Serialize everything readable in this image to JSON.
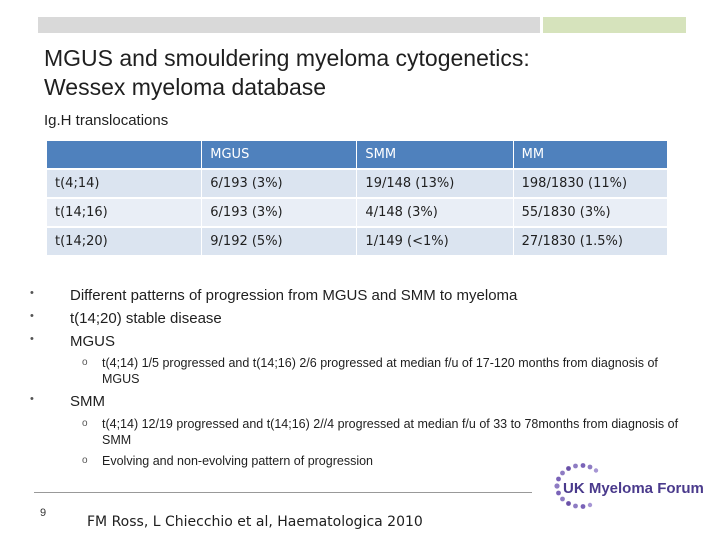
{
  "slide": {
    "title_line1": "MGUS and smouldering myeloma cytogenetics:",
    "title_line2": "Wessex myeloma database",
    "subtitle": "Ig.H translocations",
    "page_number": "9",
    "citation": "FM Ross, L Chiecchio et al, Haematologica 2010",
    "logo_text": "UK Myeloma Forum"
  },
  "table": {
    "headers": [
      "",
      "MGUS",
      "SMM",
      "MM"
    ],
    "rows": [
      [
        "t(4;14)",
        "6/193 (3%)",
        "19/148 (13%)",
        "198/1830 (11%)"
      ],
      [
        "t(14;16)",
        "6/193 (3%)",
        "4/148 (3%)",
        "55/1830 (3%)"
      ],
      [
        "t(14;20)",
        "9/192 (5%)",
        "1/149 (<1%)",
        "27/1830 (1.5%)"
      ]
    ]
  },
  "bullets": {
    "b1": "Different patterns of progression from MGUS and SMM to myeloma",
    "b2": "t(14;20) stable disease",
    "b3": "MGUS",
    "b3_sub1": "t(4;14) 1/5 progressed and t(14;16) 2/6 progressed at median f/u of 17-120 months from diagnosis  of MGUS",
    "b4": "SMM",
    "b4_sub1": "t(4;14) 12/19 progressed and t(14;16) 2//4 progressed at median f/u of  33 to 78months from diagnosis  of SMM",
    "b4_sub2": "Evolving and non-evolving pattern of progression"
  },
  "symbols": {
    "bullet": "•",
    "sub_bullet": "o"
  },
  "colors": {
    "table_header": "#4f81bd",
    "table_row": "#dbe4f0",
    "top_bar_grey": "#d9d9d9",
    "top_bar_green": "#d6e3bc",
    "logo_purple": "#4a3a8c"
  }
}
